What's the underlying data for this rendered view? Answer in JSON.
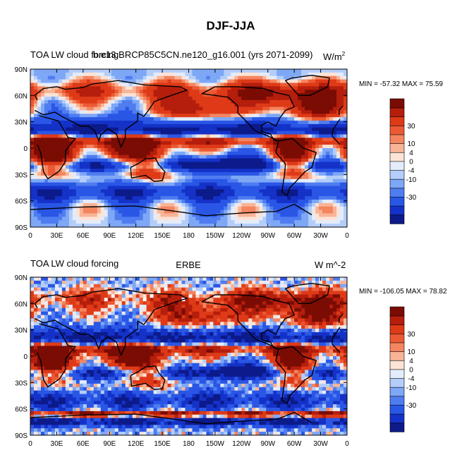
{
  "figure": {
    "title": "DJF-JJA"
  },
  "colors": {
    "levels": [
      -30,
      -10,
      -4,
      0,
      4,
      10,
      30
    ],
    "palette": [
      "#0c1a8a",
      "#1432c8",
      "#2a56e6",
      "#4f7df0",
      "#7ea7f6",
      "#b4cdf9",
      "#e3ecfb",
      "#fbe3d6",
      "#f8b496",
      "#f38560",
      "#ec5a34",
      "#de3a18",
      "#b51e0c",
      "#7a0c04"
    ]
  },
  "chart_data": [
    {
      "type": "heatmap",
      "panel": "model",
      "left_label": "TOA LW cloud forcing",
      "center_label": "b.e13.BRCP85C5CN.ne120_g16.001 (yrs 2071-2099)",
      "unit_label": "W/m",
      "unit_sup": "2",
      "min_text": "MIN = -57.32 MAX =  75.59",
      "min": -57.32,
      "max": 75.59,
      "x_ticks": [
        "0",
        "30E",
        "60E",
        "90E",
        "120E",
        "150E",
        "180",
        "150W",
        "120W",
        "90W",
        "60W",
        "30W",
        "0"
      ],
      "y_ticks": [
        "90N",
        "60N",
        "30N",
        "0",
        "30S",
        "60S",
        "90S"
      ],
      "xlim": [
        0,
        360
      ],
      "ylim": [
        -90,
        90
      ],
      "colorbar_ticks": [
        "30",
        "10",
        "4",
        "0",
        "-4",
        "-10",
        "-30"
      ]
    },
    {
      "type": "heatmap",
      "panel": "observed",
      "left_label": "TOA LW cloud forcing",
      "center_label": "ERBE",
      "unit_label": "W m^-2",
      "unit_sup": "",
      "min_text": "MIN = -106.05 MAX =  78.82",
      "min": -106.05,
      "max": 78.82,
      "x_ticks": [
        "0",
        "30E",
        "60E",
        "90E",
        "120E",
        "150E",
        "180",
        "150W",
        "120W",
        "90W",
        "60W",
        "30W",
        "0"
      ],
      "y_ticks": [
        "90N",
        "60N",
        "30N",
        "0",
        "30S",
        "60S",
        "90S"
      ],
      "xlim": [
        0,
        360
      ],
      "ylim": [
        -90,
        90
      ],
      "colorbar_ticks": [
        "30",
        "10",
        "4",
        "0",
        "-4",
        "-10",
        "-30"
      ]
    }
  ]
}
